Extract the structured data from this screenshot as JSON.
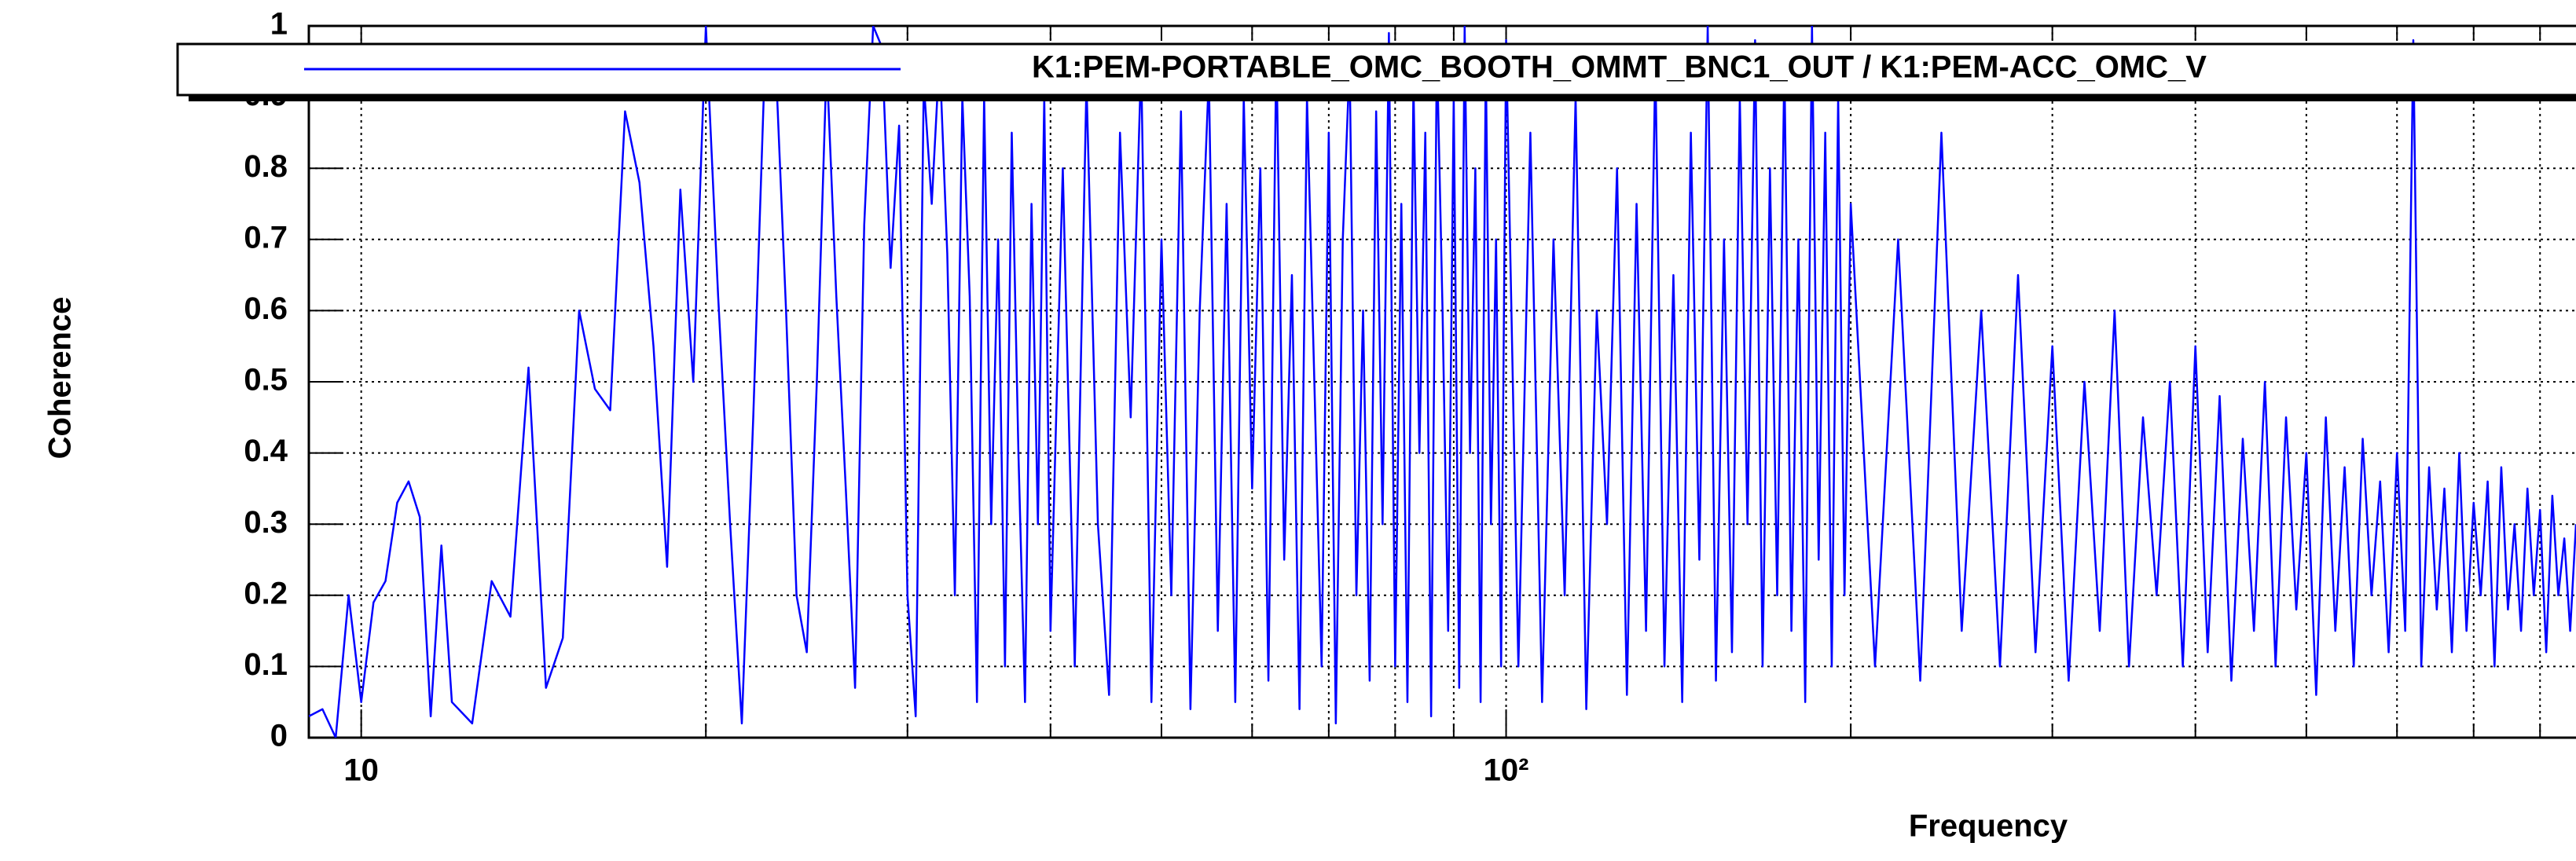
{
  "chart_data": {
    "type": "line",
    "x_label": "Frequency",
    "y_label": "Coherence",
    "log_x": true,
    "grid": true,
    "xlim": [
      9,
      860
    ],
    "ylim": [
      0,
      1
    ],
    "yticks": [
      0,
      0.1,
      0.2,
      0.3,
      0.4,
      0.5,
      0.6,
      0.7,
      0.8,
      0.9,
      1
    ],
    "xticks": [
      10,
      {
        "value": 100,
        "label": "10²"
      }
    ],
    "x_minor_ticks": [
      20,
      30,
      40,
      50,
      60,
      70,
      80,
      90,
      200,
      300,
      400,
      500,
      600,
      700,
      800
    ],
    "legend_position": "top",
    "x": [
      9,
      9.25,
      9.5,
      9.75,
      10,
      10.25,
      10.5,
      10.75,
      11,
      11.25,
      11.5,
      11.75,
      12,
      12.5,
      13,
      13.5,
      14,
      14.5,
      15,
      15.5,
      16,
      16.5,
      17,
      17.5,
      18,
      18.5,
      19,
      19.5,
      20,
      20.5,
      21,
      21.5,
      22,
      22.5,
      23,
      23.5,
      24,
      24.5,
      25,
      25.5,
      26,
      26.5,
      27,
      27.5,
      28,
      28.5,
      29,
      29.5,
      30,
      30.5,
      31,
      31.5,
      32,
      32.5,
      33,
      33.5,
      34,
      34.5,
      35,
      35.5,
      36,
      36.5,
      37,
      37.5,
      38,
      38.5,
      39,
      39.5,
      40,
      41,
      42,
      43,
      44,
      45,
      46,
      47,
      48,
      49,
      50,
      51,
      52,
      53,
      54,
      55,
      56,
      57,
      58,
      59,
      60,
      61,
      62,
      63,
      64,
      65,
      66,
      67,
      68,
      69,
      70,
      71,
      72,
      73,
      74,
      75,
      76,
      77,
      78,
      79,
      80,
      81,
      82,
      83,
      84,
      85,
      86,
      87,
      88,
      89,
      90,
      91,
      92,
      93,
      94,
      95,
      96,
      97,
      98,
      99,
      100,
      102.5,
      105,
      107.5,
      110,
      112.5,
      115,
      117.5,
      120,
      122.5,
      125,
      127.5,
      130,
      132.5,
      135,
      137.5,
      140,
      142.5,
      145,
      147.5,
      150,
      152.5,
      155,
      157.5,
      160,
      162.5,
      165,
      167.5,
      170,
      172.5,
      175,
      177.5,
      180,
      182.5,
      185,
      187.5,
      190,
      192.5,
      195,
      197.5,
      200,
      210,
      220,
      230,
      240,
      250,
      260,
      270,
      280,
      290,
      300,
      310,
      320,
      330,
      340,
      350,
      360,
      370,
      380,
      390,
      400,
      410,
      420,
      430,
      440,
      450,
      460,
      470,
      480,
      490,
      500,
      510,
      520,
      530,
      540,
      550,
      560,
      570,
      580,
      590,
      600,
      610,
      620,
      630,
      640,
      650,
      660,
      670,
      680,
      690,
      700,
      710,
      720,
      730,
      740,
      750,
      760,
      770,
      780,
      790,
      800,
      810,
      820,
      830,
      840,
      850,
      860
    ],
    "series": [
      {
        "name": "K1:PEM-PORTABLE_OMC_BOOTH_OMMT_BNC1_OUT / K1:PEM-ACC_OMC_V",
        "color": "#0000ff",
        "values": [
          0.03,
          0.04,
          0.0,
          0.2,
          0.05,
          0.19,
          0.22,
          0.33,
          0.36,
          0.31,
          0.03,
          0.27,
          0.05,
          0.02,
          0.22,
          0.17,
          0.52,
          0.07,
          0.14,
          0.6,
          0.49,
          0.46,
          0.88,
          0.78,
          0.55,
          0.24,
          0.77,
          0.5,
          1.0,
          0.62,
          0.3,
          0.02,
          0.45,
          0.93,
          0.96,
          0.6,
          0.2,
          0.12,
          0.5,
          0.95,
          0.62,
          0.35,
          0.07,
          0.72,
          1.0,
          0.97,
          0.66,
          0.86,
          0.2,
          0.03,
          0.92,
          0.75,
          0.96,
          0.68,
          0.2,
          0.9,
          0.62,
          0.05,
          0.9,
          0.3,
          0.7,
          0.1,
          0.85,
          0.4,
          0.05,
          0.75,
          0.3,
          0.9,
          0.15,
          0.8,
          0.1,
          0.92,
          0.3,
          0.06,
          0.85,
          0.45,
          0.95,
          0.05,
          0.7,
          0.2,
          0.88,
          0.04,
          0.6,
          0.93,
          0.15,
          0.75,
          0.05,
          0.9,
          0.35,
          0.8,
          0.08,
          0.97,
          0.25,
          0.65,
          0.04,
          0.9,
          0.5,
          0.1,
          0.85,
          0.02,
          0.7,
          0.95,
          0.2,
          0.6,
          0.08,
          0.88,
          0.3,
          0.99,
          0.1,
          0.75,
          0.05,
          0.92,
          0.4,
          0.85,
          0.03,
          0.97,
          0.6,
          0.15,
          0.9,
          0.07,
          1.0,
          0.4,
          0.8,
          0.05,
          0.95,
          0.3,
          0.7,
          0.1,
          0.98,
          0.1,
          0.85,
          0.05,
          0.7,
          0.2,
          0.9,
          0.04,
          0.6,
          0.3,
          0.8,
          0.06,
          0.75,
          0.15,
          0.95,
          0.1,
          0.65,
          0.05,
          0.85,
          0.25,
          1.0,
          0.08,
          0.7,
          0.12,
          0.9,
          0.3,
          0.98,
          0.1,
          0.8,
          0.2,
          0.95,
          0.15,
          0.7,
          0.05,
          1.0,
          0.25,
          0.85,
          0.1,
          0.9,
          0.2,
          0.75,
          0.1,
          0.7,
          0.08,
          0.85,
          0.15,
          0.6,
          0.1,
          0.65,
          0.12,
          0.55,
          0.08,
          0.5,
          0.15,
          0.6,
          0.1,
          0.45,
          0.2,
          0.5,
          0.1,
          0.55,
          0.12,
          0.48,
          0.08,
          0.42,
          0.15,
          0.5,
          0.1,
          0.45,
          0.18,
          0.4,
          0.06,
          0.45,
          0.15,
          0.38,
          0.1,
          0.42,
          0.2,
          0.36,
          0.12,
          0.4,
          0.15,
          0.98,
          0.1,
          0.38,
          0.18,
          0.35,
          0.12,
          0.4,
          0.15,
          0.33,
          0.2,
          0.36,
          0.1,
          0.38,
          0.18,
          0.3,
          0.15,
          0.35,
          0.2,
          0.32,
          0.12,
          0.34,
          0.2,
          0.28,
          0.15,
          0.3
        ]
      }
    ]
  }
}
